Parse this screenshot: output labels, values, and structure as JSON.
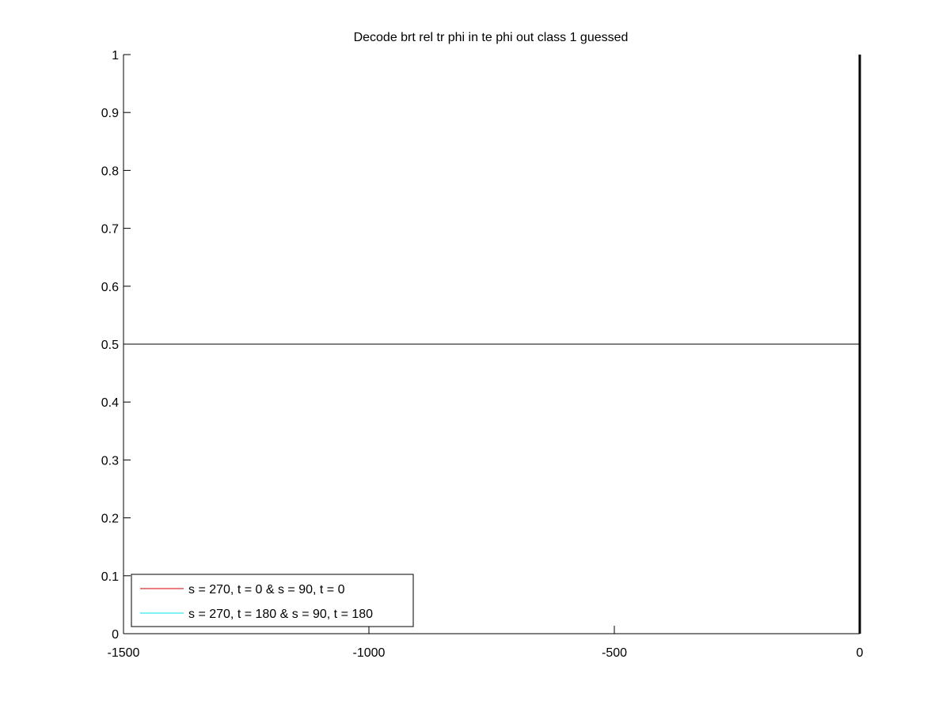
{
  "chart_data": {
    "type": "line",
    "title": "Decode brt rel tr phi in te phi out  class 1 guessed",
    "xlabel": "",
    "ylabel": "",
    "xlim": [
      -1500,
      0
    ],
    "ylim": [
      0,
      1
    ],
    "x_ticks": [
      {
        "value": -1500,
        "label": "-1500"
      },
      {
        "value": -1000,
        "label": "-1000"
      },
      {
        "value": -500,
        "label": "-500"
      },
      {
        "value": 0,
        "label": "0"
      }
    ],
    "y_ticks": [
      {
        "value": 0,
        "label": "0"
      },
      {
        "value": 0.1,
        "label": "0.1"
      },
      {
        "value": 0.2,
        "label": "0.2"
      },
      {
        "value": 0.3,
        "label": "0.3"
      },
      {
        "value": 0.4,
        "label": "0.4"
      },
      {
        "value": 0.5,
        "label": "0.5"
      },
      {
        "value": 0.6,
        "label": "0.6"
      },
      {
        "value": 0.7,
        "label": "0.7"
      },
      {
        "value": 0.8,
        "label": "0.8"
      },
      {
        "value": 0.9,
        "label": "0.9"
      },
      {
        "value": 1,
        "label": "1"
      }
    ],
    "grid": false,
    "legend_position": "bottom-left",
    "series": [
      {
        "name": "s = 270, t = 0 & s = 90, t = 0",
        "color": "#cc0000",
        "x": [],
        "y": []
      },
      {
        "name": "s = 270, t = 180 & s = 90, t = 180",
        "color": "#00e5ee",
        "x": [],
        "y": []
      }
    ],
    "reference_lines": [
      {
        "orientation": "horizontal",
        "value": 0.5,
        "color": "#000000"
      },
      {
        "orientation": "vertical",
        "value": 0,
        "color": "#000000"
      }
    ]
  }
}
